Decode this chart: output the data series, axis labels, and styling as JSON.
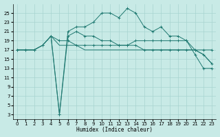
{
  "xlabel": "Humidex (Indice chaleur)",
  "bg_color": "#c8eae6",
  "grid_color": "#a8d4d0",
  "line_color": "#1e7870",
  "xlim": [
    -0.5,
    23.5
  ],
  "ylim": [
    2,
    27
  ],
  "xticks": [
    0,
    1,
    2,
    3,
    4,
    5,
    6,
    7,
    8,
    9,
    10,
    11,
    12,
    13,
    14,
    15,
    16,
    17,
    18,
    19,
    20,
    21,
    22,
    23
  ],
  "yticks": [
    3,
    5,
    7,
    9,
    11,
    13,
    15,
    17,
    19,
    21,
    23,
    25
  ],
  "line1_x": [
    0,
    1,
    2,
    3,
    4,
    5,
    6,
    7,
    8,
    9,
    10,
    11,
    12,
    13,
    14,
    15,
    16,
    17,
    18,
    19,
    20,
    21,
    22,
    23
  ],
  "line1_y": [
    17,
    17,
    17,
    18,
    20,
    19,
    19,
    18,
    18,
    18,
    18,
    18,
    18,
    18,
    19,
    19,
    19,
    19,
    19,
    19,
    19,
    17,
    16,
    14
  ],
  "line2_x": [
    0,
    1,
    2,
    3,
    4,
    5,
    6,
    7,
    8,
    9,
    10,
    11,
    12,
    13,
    14,
    15,
    16,
    17,
    18,
    19,
    20,
    21,
    22,
    23
  ],
  "line2_y": [
    17,
    17,
    17,
    18,
    20,
    18,
    18,
    18,
    17,
    17,
    17,
    17,
    17,
    17,
    17,
    17,
    17,
    17,
    17,
    17,
    17,
    17,
    16,
    14
  ],
  "line3_x": [
    0,
    1,
    2,
    3,
    4,
    5,
    6,
    7,
    8,
    9,
    10,
    11,
    12,
    13,
    14,
    15,
    16,
    17,
    18,
    19,
    20,
    21,
    22,
    23
  ],
  "line3_y": [
    17,
    17,
    17,
    18,
    20,
    3,
    20,
    21,
    20,
    20,
    19,
    19,
    18,
    18,
    18,
    17,
    17,
    17,
    17,
    17,
    17,
    17,
    17,
    17
  ],
  "line4_x": [
    4,
    5,
    6,
    7,
    8,
    9,
    10,
    11,
    12,
    13,
    14,
    15,
    16,
    17,
    18,
    19,
    20,
    21,
    22,
    23
  ],
  "line4_y": [
    20,
    3,
    21,
    22,
    22,
    23,
    25,
    25,
    24,
    26,
    25,
    22,
    21,
    22,
    20,
    20,
    19,
    16,
    13,
    13
  ]
}
